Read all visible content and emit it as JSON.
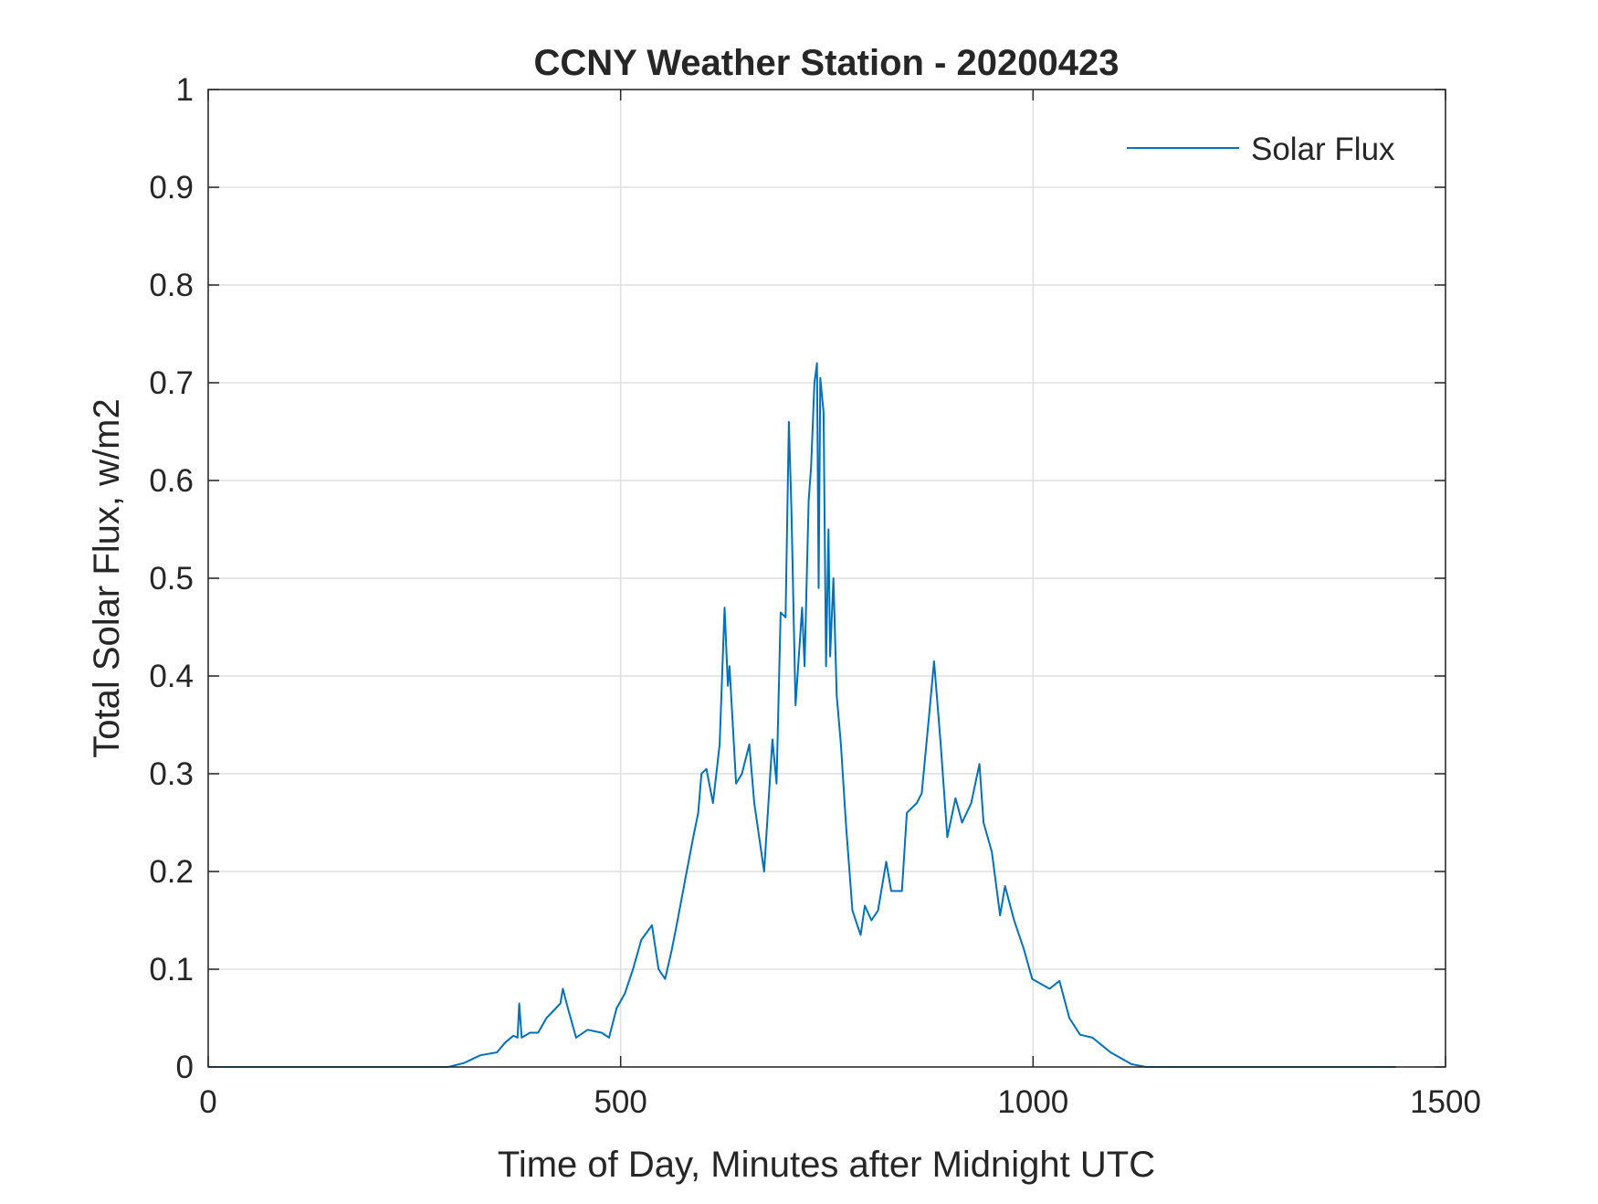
{
  "chart_data": {
    "type": "line",
    "title": "CCNY Weather Station - 20200423",
    "xlabel": "Time of Day, Minutes after Midnight UTC",
    "ylabel": "Total Solar Flux, w/m2",
    "xlim": [
      0,
      1500
    ],
    "ylim": [
      0,
      1
    ],
    "xticks": [
      0,
      500,
      1000,
      1500
    ],
    "xtick_labels": [
      "0",
      "500",
      "1000",
      "1500"
    ],
    "yticks": [
      0,
      0.1,
      0.2,
      0.3,
      0.4,
      0.5,
      0.6,
      0.7,
      0.8,
      0.9,
      1
    ],
    "ytick_labels": [
      "0",
      "0.1",
      "0.2",
      "0.3",
      "0.4",
      "0.5",
      "0.6",
      "0.7",
      "0.8",
      "0.9",
      "1"
    ],
    "grid": true,
    "legend_position": "top-right",
    "series": [
      {
        "name": "Solar Flux",
        "color": "#0072BD",
        "x": [
          0,
          291,
          310,
          330,
          350,
          360,
          370,
          375,
          377,
          380,
          390,
          400,
          410,
          427,
          430,
          436,
          446,
          460,
          477,
          486,
          495,
          505,
          515,
          525,
          538,
          546,
          554,
          562,
          569,
          579,
          588,
          594,
          598,
          604,
          612,
          620,
          626,
          630,
          632,
          640,
          647,
          656,
          662,
          674,
          684,
          689,
          694,
          700,
          704,
          707,
          712,
          720,
          723,
          728,
          731,
          735,
          738,
          740,
          742,
          746,
          749,
          752,
          754,
          758,
          762,
          767,
          773,
          781,
          791,
          796,
          804,
          812,
          822,
          828,
          841,
          847,
          859,
          865,
          874,
          880,
          888,
          896,
          906,
          914,
          925,
          935,
          940,
          950,
          960,
          966,
          977,
          989,
          999,
          1020,
          1032,
          1044,
          1057,
          1072,
          1094,
          1119,
          1137,
          1440
        ],
        "y": [
          0,
          0,
          0.004,
          0.012,
          0.015,
          0.025,
          0.032,
          0.03,
          0.065,
          0.03,
          0.035,
          0.035,
          0.05,
          0.065,
          0.08,
          0.06,
          0.03,
          0.038,
          0.035,
          0.03,
          0.06,
          0.075,
          0.1,
          0.13,
          0.145,
          0.1,
          0.09,
          0.12,
          0.15,
          0.195,
          0.235,
          0.26,
          0.3,
          0.305,
          0.27,
          0.33,
          0.47,
          0.39,
          0.41,
          0.29,
          0.3,
          0.33,
          0.27,
          0.2,
          0.335,
          0.29,
          0.465,
          0.46,
          0.66,
          0.57,
          0.37,
          0.47,
          0.41,
          0.58,
          0.615,
          0.7,
          0.72,
          0.49,
          0.705,
          0.67,
          0.41,
          0.55,
          0.42,
          0.5,
          0.38,
          0.33,
          0.25,
          0.16,
          0.135,
          0.165,
          0.15,
          0.16,
          0.21,
          0.18,
          0.18,
          0.26,
          0.27,
          0.28,
          0.36,
          0.415,
          0.33,
          0.235,
          0.275,
          0.25,
          0.27,
          0.31,
          0.25,
          0.22,
          0.155,
          0.185,
          0.15,
          0.12,
          0.09,
          0.08,
          0.088,
          0.05,
          0.033,
          0.03,
          0.015,
          0.003,
          0,
          0
        ]
      }
    ]
  }
}
